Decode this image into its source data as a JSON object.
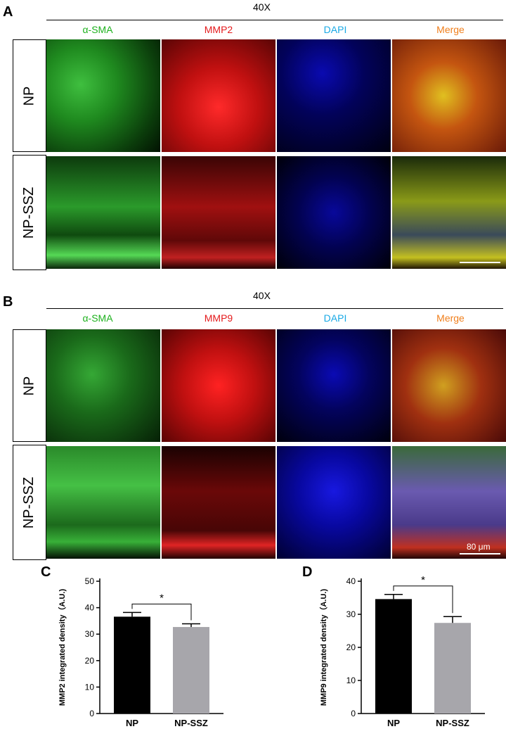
{
  "panel_A": {
    "letter": "A",
    "magnification": "40X",
    "channels": [
      {
        "label": "α-SMA",
        "color": "#1db11d"
      },
      {
        "label": "MMP2",
        "color": "#e41a1c"
      },
      {
        "label": "DAPI",
        "color": "#19a9e5"
      },
      {
        "label": "Merge",
        "color": "#f07f1c"
      }
    ],
    "rows": [
      "NP",
      "NP-SSZ"
    ]
  },
  "panel_B": {
    "letter": "B",
    "magnification": "40X",
    "channels": [
      {
        "label": "α-SMA",
        "color": "#1db11d"
      },
      {
        "label": "MMP9",
        "color": "#e41a1c"
      },
      {
        "label": "DAPI",
        "color": "#19a9e5"
      },
      {
        "label": "Merge",
        "color": "#f07f1c"
      }
    ],
    "rows": [
      "NP",
      "NP-SSZ"
    ],
    "scale_bar": "80 μm"
  },
  "chart_data": [
    {
      "panel": "C",
      "type": "bar",
      "categories": [
        "NP",
        "NP-SSZ"
      ],
      "values": [
        36.6,
        32.7
      ],
      "errors": [
        1.6,
        1.2
      ],
      "colors": [
        "#000000",
        "#a7a6ab"
      ],
      "ylabel": "MMP2 integrated density（A.U.)",
      "ylim": [
        0,
        50
      ],
      "yticks": [
        0,
        10,
        20,
        30,
        40,
        50
      ],
      "significance": "*"
    },
    {
      "panel": "D",
      "type": "bar",
      "categories": [
        "NP",
        "NP-SSZ"
      ],
      "values": [
        34.6,
        27.4
      ],
      "errors": [
        1.4,
        1.9
      ],
      "colors": [
        "#000000",
        "#a7a6ab"
      ],
      "ylabel": "MMP9 integrated density（A.U.)",
      "ylim": [
        0,
        40
      ],
      "yticks": [
        0,
        10,
        20,
        30,
        40
      ],
      "significance": "*"
    }
  ]
}
